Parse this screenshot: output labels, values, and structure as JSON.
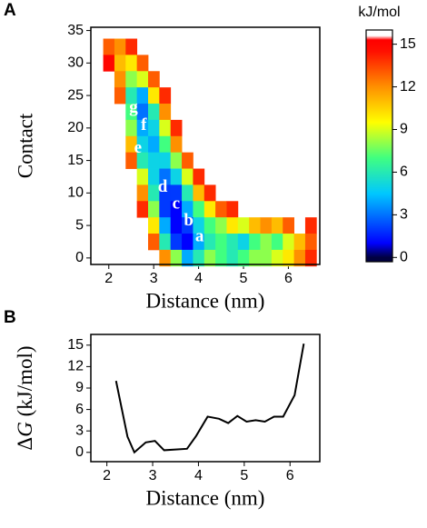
{
  "chart_data": [
    {
      "type": "heatmap",
      "panel": "A",
      "xlabel": "Distance (nm)",
      "ylabel": "Contact",
      "xlim": [
        1.6,
        6.7
      ],
      "ylim": [
        -1,
        35.5
      ],
      "xticks": [
        2,
        3,
        4,
        5,
        6
      ],
      "yticks": [
        0,
        5,
        10,
        15,
        20,
        25,
        30,
        35
      ],
      "x": [
        2.0,
        2.25,
        2.5,
        2.75,
        3.0,
        3.25,
        3.5,
        3.75,
        4.0,
        4.25,
        4.5,
        4.75,
        5.0,
        5.25,
        5.5,
        5.75,
        6.0,
        6.25,
        6.5
      ],
      "y": [
        32.5,
        30,
        27.5,
        25,
        22.5,
        20,
        17.5,
        15,
        12.5,
        10,
        7.5,
        5,
        2.5,
        0
      ],
      "z": [
        [
          13,
          12,
          14,
          null,
          null,
          null,
          null,
          null,
          null,
          null,
          null,
          null,
          null,
          null,
          null,
          null,
          null,
          null,
          null
        ],
        [
          15,
          11,
          10,
          13,
          null,
          null,
          null,
          null,
          null,
          null,
          null,
          null,
          null,
          null,
          null,
          null,
          null,
          null,
          null
        ],
        [
          null,
          12,
          8,
          9,
          13,
          null,
          null,
          null,
          null,
          null,
          null,
          null,
          null,
          null,
          null,
          null,
          null,
          null,
          null
        ],
        [
          null,
          13,
          6,
          4,
          10,
          14,
          null,
          null,
          null,
          null,
          null,
          null,
          null,
          null,
          null,
          null,
          null,
          null,
          null
        ],
        [
          null,
          null,
          7,
          3,
          6,
          12,
          null,
          null,
          null,
          null,
          null,
          null,
          null,
          null,
          null,
          null,
          null,
          null,
          null
        ],
        [
          null,
          null,
          8,
          4,
          5,
          9,
          14,
          null,
          null,
          null,
          null,
          null,
          null,
          null,
          null,
          null,
          null,
          null,
          null
        ],
        [
          null,
          null,
          11,
          5,
          4,
          7,
          12,
          null,
          null,
          null,
          null,
          null,
          null,
          null,
          null,
          null,
          null,
          null,
          null
        ],
        [
          null,
          null,
          13,
          6,
          5,
          5,
          8,
          13,
          null,
          null,
          null,
          null,
          null,
          null,
          null,
          null,
          null,
          null,
          null
        ],
        [
          null,
          null,
          null,
          9,
          5,
          3,
          5,
          9,
          14,
          null,
          null,
          null,
          null,
          null,
          null,
          null,
          null,
          null,
          null
        ],
        [
          null,
          null,
          null,
          12,
          6,
          2,
          2,
          6,
          11,
          14,
          null,
          null,
          null,
          null,
          null,
          null,
          null,
          null,
          null
        ],
        [
          null,
          null,
          null,
          14,
          8,
          2,
          1,
          4,
          7,
          10,
          13,
          14,
          null,
          null,
          null,
          null,
          null,
          null,
          null
        ],
        [
          null,
          null,
          null,
          null,
          10,
          4,
          1,
          2,
          5,
          7,
          8,
          10,
          9,
          11,
          12,
          11,
          13,
          null,
          14
        ],
        [
          null,
          null,
          null,
          null,
          13,
          6,
          2,
          1,
          4,
          6,
          7,
          6,
          5,
          7,
          8,
          7,
          9,
          11,
          13
        ],
        [
          null,
          null,
          null,
          null,
          null,
          12,
          8,
          4,
          6,
          8,
          7,
          6,
          7,
          8,
          8,
          9,
          10,
          12,
          14
        ]
      ],
      "colorbar_label": "kJ/mol",
      "clim": [
        -0.3,
        16
      ],
      "cticks": [
        0,
        3,
        6,
        9,
        12,
        15
      ],
      "colorscale": [
        [
          0,
          "#000040"
        ],
        [
          1,
          "#0000ff"
        ],
        [
          4.5,
          "#00c8ff"
        ],
        [
          7,
          "#40ff80"
        ],
        [
          9.5,
          "#ffff00"
        ],
        [
          12,
          "#ff9000"
        ],
        [
          14.5,
          "#ff1000"
        ],
        [
          15.3,
          "#ff0000"
        ],
        [
          15.6,
          "#ffffff"
        ]
      ],
      "annotations": [
        {
          "text": "g",
          "x": 2.55,
          "y": 23
        },
        {
          "text": "f",
          "x": 2.78,
          "y": 20.3
        },
        {
          "text": "e",
          "x": 2.65,
          "y": 16.8
        },
        {
          "text": "d",
          "x": 3.2,
          "y": 10.8
        },
        {
          "text": "c",
          "x": 3.5,
          "y": 8.2
        },
        {
          "text": "b",
          "x": 3.78,
          "y": 5.6
        },
        {
          "text": "a",
          "x": 4.02,
          "y": 3.2
        }
      ]
    },
    {
      "type": "line",
      "panel": "B",
      "xlabel": "Distance (nm)",
      "ylabel": [
        "Δ",
        "G",
        " (kJ/mol)"
      ],
      "xlim": [
        1.65,
        6.65
      ],
      "ylim": [
        -1.3,
        16.5
      ],
      "xticks": [
        2,
        3,
        4,
        5,
        6
      ],
      "yticks": [
        0,
        3,
        6,
        9,
        12,
        15
      ],
      "color": "#000000",
      "x": [
        2.2,
        2.45,
        2.6,
        2.85,
        3.05,
        3.25,
        3.5,
        3.75,
        3.95,
        4.2,
        4.45,
        4.65,
        4.85,
        5.05,
        5.25,
        5.45,
        5.65,
        5.85,
        6.1,
        6.3
      ],
      "values": [
        10,
        2.2,
        0,
        1.4,
        1.6,
        0.3,
        0.4,
        0.5,
        2.3,
        5.0,
        4.7,
        4.1,
        5.1,
        4.3,
        4.5,
        4.3,
        5.0,
        5.0,
        8.0,
        15.2
      ]
    }
  ]
}
